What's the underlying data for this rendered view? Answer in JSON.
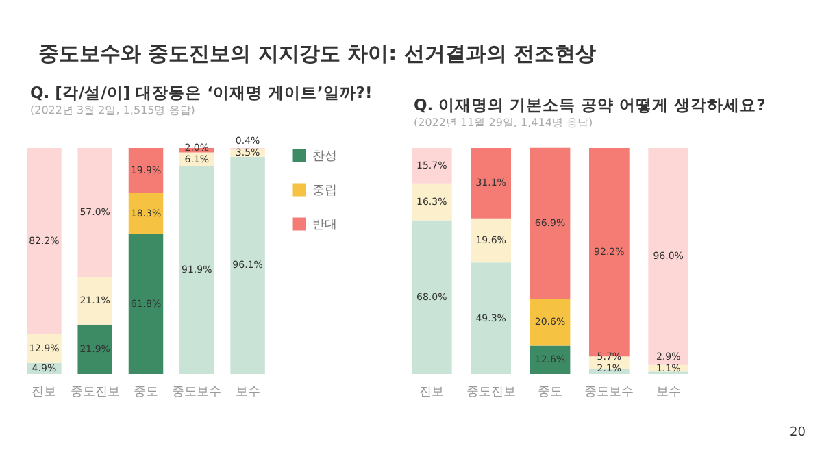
{
  "chart_data": [
    {
      "type": "bar",
      "title": "Q. [각/설/이] 대장동은 ‘이재명 게이트’일까?!",
      "subtitle": "(2022년 3월 2일, 1,515명 응답)",
      "annotations": [
        "중도보수와 중도진보의 지지강도 차이: 선거결과의 전조현상"
      ],
      "stacked": true,
      "legend": "right",
      "tick_labels": "x",
      "ylim": [
        0,
        100
      ],
      "categories": [
        "진보",
        "중도진보",
        "중도",
        "중도보수",
        "보수"
      ],
      "series": [
        {
          "name": "찬성",
          "color": "#3d8b64",
          "colors": [
            "#c9e3d7",
            "#3d8b64",
            "#3d8b64",
            "#c9e3d7",
            "#c9e3d7"
          ],
          "values": [
            4.9,
            21.9,
            61.8,
            91.9,
            96.1
          ],
          "value_labels": [
            "4.9%",
            "21.9%",
            "61.8%",
            "91.9%",
            "96.1%"
          ]
        },
        {
          "name": "중립",
          "color": "#f5c242",
          "colors": [
            "#fcefcc",
            "#fcefcc",
            "#f5c242",
            "#fcefcc",
            "#fcefcc"
          ],
          "values": [
            12.9,
            21.1,
            18.3,
            6.1,
            3.5
          ],
          "value_labels": [
            "12.9%",
            "21.1%",
            "18.3%",
            "6.1%",
            "3.5%"
          ]
        },
        {
          "name": "반대",
          "color": "#f47c74",
          "colors": [
            "#fdd6d6",
            "#fdd6d6",
            "#f47c74",
            "#f47c74",
            "#fdd6d6"
          ],
          "values": [
            82.2,
            57.0,
            19.9,
            2.0,
            0.4
          ],
          "value_labels": [
            "82.2%",
            "57.0%",
            "19.9%",
            "2.0%",
            "0.4%"
          ]
        }
      ]
    },
    {
      "type": "bar",
      "title": "Q. 이재명의 기본소득 공약 어떻게 생각하세요?",
      "subtitle": "(2022년 11월 29일, 1,414명 응답)",
      "annotations": [
        "20"
      ],
      "stacked": true,
      "tick_labels": "x",
      "ylim": [
        0,
        100
      ],
      "categories": [
        "진보",
        "중도진보",
        "중도",
        "중도보수",
        "보수"
      ],
      "series": [
        {
          "colors": [
            "#c9e3d7",
            "#c9e3d7",
            "#3d8b64",
            "#c9e3d7",
            "#c9e3d7"
          ],
          "values": [
            68.0,
            49.3,
            12.6,
            2.1,
            1.1
          ],
          "value_labels": [
            "68.0%",
            "49.3%",
            "12.6%",
            "2.1%",
            "1.1%"
          ]
        },
        {
          "colors": [
            "#fcefcc",
            "#fcefcc",
            "#f5c242",
            "#fcefcc",
            "#fcefcc"
          ],
          "values": [
            16.3,
            19.6,
            20.6,
            5.7,
            2.9
          ],
          "value_labels": [
            "16.3%",
            "19.6%",
            "20.6%",
            "5.7%",
            "2.9%"
          ]
        },
        {
          "colors": [
            "#fdd6d6",
            "#f47c74",
            "#f47c74",
            "#f47c74",
            "#fdd6d6"
          ],
          "values": [
            15.7,
            31.1,
            66.9,
            92.2,
            96.0
          ],
          "value_labels": [
            "15.7%",
            "31.1%",
            "66.9%",
            "92.2%",
            "96.0%"
          ]
        }
      ]
    }
  ]
}
